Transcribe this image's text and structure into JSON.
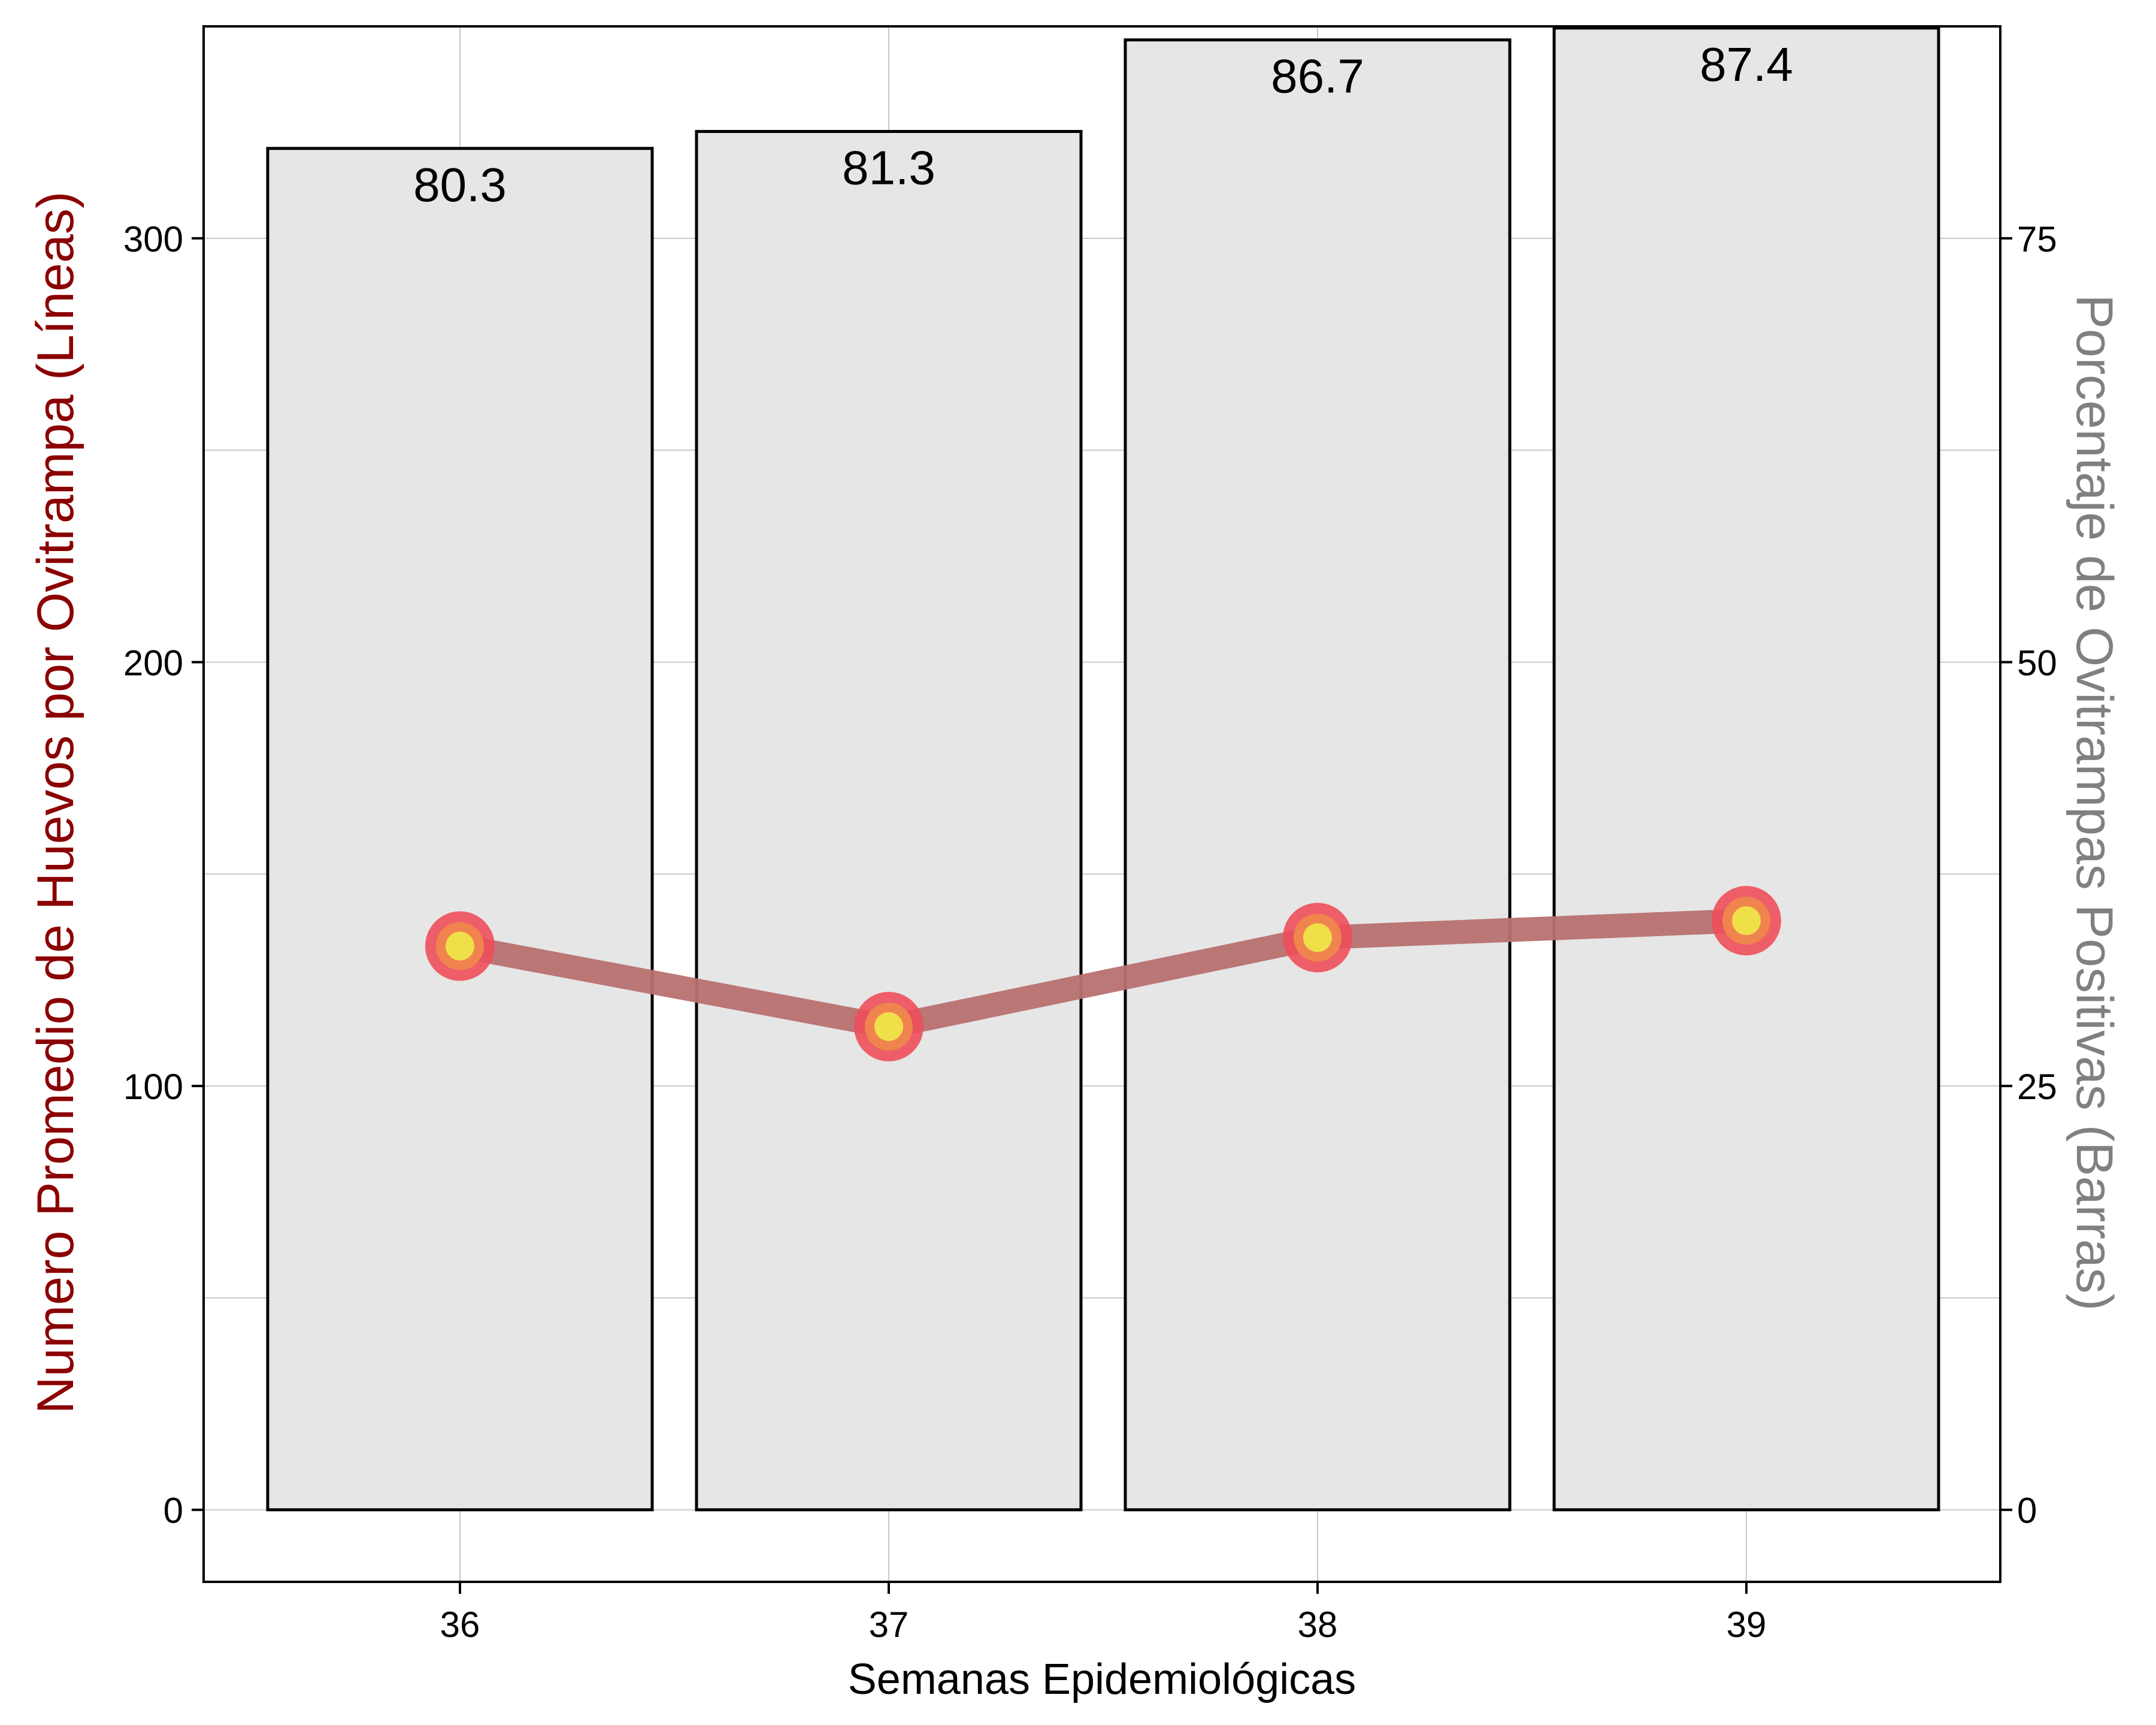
{
  "chart_data": {
    "type": "bar",
    "x_title": "Semanas Epidemiológicas",
    "y_left_title": "Numero Promedio de Huevos por Ovitrampa (Líneas)",
    "y_right_title": "Porcentaje de Ovitrampas Positivas (Barras)",
    "categories": [
      "36",
      "37",
      "38",
      "39"
    ],
    "bars": {
      "name": "Porcentaje de Ovitrampas Positivas",
      "axis": "right",
      "values": [
        80.3,
        81.3,
        86.7,
        87.4
      ],
      "labels": [
        "80.3",
        "81.3",
        "86.7",
        "87.4"
      ]
    },
    "line": {
      "name": "Numero Promedio de Huevos por Ovitrampa",
      "axis": "left",
      "values": [
        133,
        114,
        135,
        139
      ]
    },
    "y_left": {
      "range": [
        -17,
        350
      ],
      "ticks": [
        0,
        100,
        200,
        300
      ]
    },
    "y_right": {
      "range": [
        -4.25,
        87.5
      ],
      "ticks": [
        0,
        25,
        50,
        75
      ]
    },
    "x_ticks": [
      "36",
      "37",
      "38",
      "39"
    ],
    "grid": true,
    "colors": {
      "bar_fill": "#e6e6e6",
      "bar_stroke": "#000000",
      "line": "#b87070",
      "point_outer": "#ee4f5a",
      "point_mid": "#f0844e",
      "point_inner": "#efe04a",
      "left_title": "#8b0000",
      "right_title": "#808080",
      "grid": "#c8c8c8"
    }
  }
}
